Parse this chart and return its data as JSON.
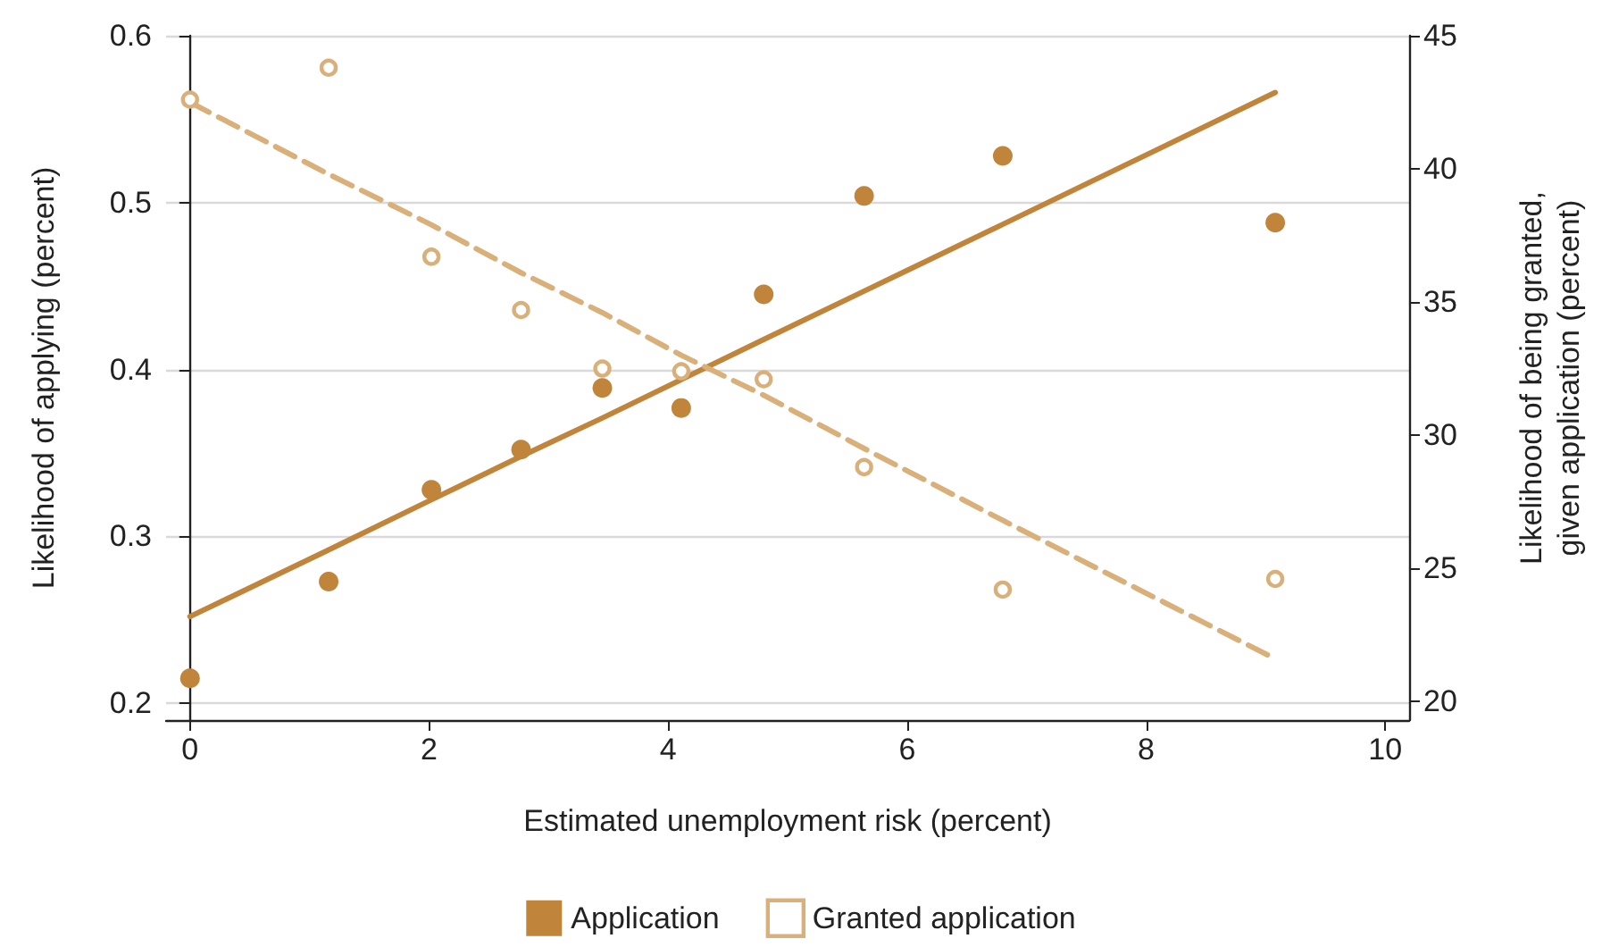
{
  "chart_data": {
    "type": "scatter",
    "xlabel": "Estimated unemployment risk (percent)",
    "ylabel": "Likelihood of applying (percent)",
    "y2label": "Likelihood of being granted, given application (percent)",
    "xlim": [
      -0.2,
      10.2
    ],
    "xticks": [
      0,
      2,
      4,
      6,
      8,
      10
    ],
    "ylim": [
      0.19,
      0.6
    ],
    "yticks": [
      0.2,
      0.3,
      0.4,
      0.5,
      0.6
    ],
    "y2lim": [
      19.3,
      45
    ],
    "y2ticks": [
      20,
      25,
      30,
      35,
      40,
      45
    ],
    "x": [
      0,
      1.16,
      2.02,
      2.77,
      3.45,
      4.11,
      4.8,
      5.64,
      6.8,
      9.08
    ],
    "series": [
      {
        "name": "Application",
        "marker": "circle",
        "color": "#c0843a",
        "values": [
          0.215,
          0.273,
          0.328,
          0.352,
          0.389,
          0.377,
          0.445,
          0.504,
          0.528,
          0.488
        ]
      },
      {
        "name": "Granted application",
        "marker": "circle",
        "axis": "y2",
        "color": "#d9b07a",
        "values": [
          42.6,
          43.8,
          36.7,
          34.7,
          32.5,
          32.4,
          32.1,
          28.8,
          24.2,
          24.6
        ]
      },
      {
        "type": "line",
        "marker": "none",
        "color": "#c0843a",
        "line_style": "solid",
        "values": [
          0.252,
          0.292,
          0.322,
          0.348,
          0.371,
          0.394,
          0.418,
          0.447,
          0.487,
          0.566
        ]
      },
      {
        "type": "line",
        "marker": "none",
        "axis": "y2",
        "color": "#d9b07a",
        "line_style": "dashed",
        "values": [
          42.5,
          39.8,
          37.9,
          36.1,
          34.6,
          33.0,
          31.5,
          29.5,
          26.8,
          21.6
        ]
      }
    ],
    "grid": "y",
    "legend": "bottom"
  }
}
